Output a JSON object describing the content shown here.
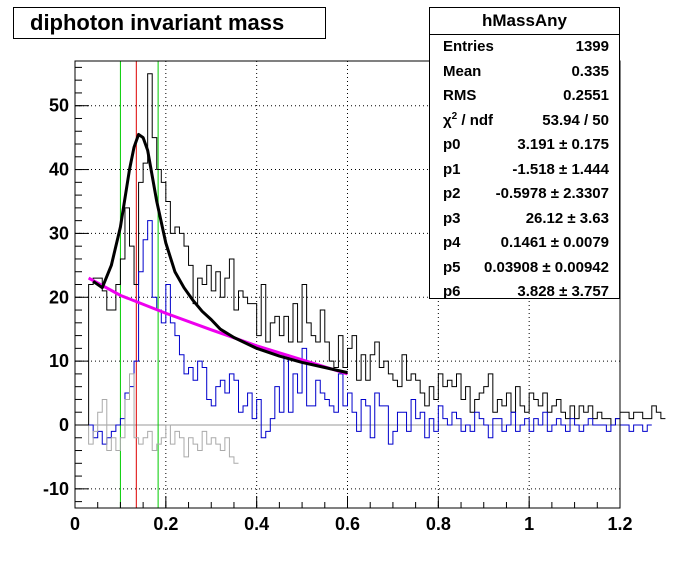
{
  "title": "diphoton invariant mass",
  "stats": {
    "name": "hMassAny",
    "rows": [
      {
        "label": "Entries",
        "value": "1399"
      },
      {
        "label": "Mean",
        "value": "0.335"
      },
      {
        "label": "RMS",
        "value": "0.2551"
      },
      {
        "label": "chi2 / ndf",
        "value": "53.94 / 50"
      },
      {
        "label": "p0",
        "value": "3.191 ± 0.175"
      },
      {
        "label": "p1",
        "value": "-1.518 ± 1.444"
      },
      {
        "label": "p2",
        "value": "-0.5978 ± 2.3307"
      },
      {
        "label": "p3",
        "value": "26.12 ± 3.63"
      },
      {
        "label": "p4",
        "value": "0.1461 ± 0.0079"
      },
      {
        "label": "p5",
        "value": "0.03908 ± 0.00942"
      },
      {
        "label": "p6",
        "value": "3.828 ± 3.757"
      }
    ]
  },
  "chart_data": {
    "type": "line",
    "title": "diphoton invariant mass",
    "xlabel": "",
    "ylabel": "",
    "xlim": [
      0,
      1.2
    ],
    "ylim": [
      -13,
      57
    ],
    "xticks": [
      0,
      0.2,
      0.4,
      0.6,
      0.8,
      1,
      1.2
    ],
    "xtick_labels": [
      "0",
      "0.2",
      "0.4",
      "0.6",
      "0.8",
      "1",
      "1.2"
    ],
    "yticks": [
      -10,
      0,
      10,
      20,
      30,
      40,
      50
    ],
    "ytick_labels": [
      "-10",
      "0",
      "10",
      "20",
      "30",
      "40",
      "50"
    ],
    "grid": true,
    "bin_width": 0.01,
    "colors": {
      "total": "#000000",
      "signal_band": "#0000cc",
      "sideband": "#aaaaaa",
      "fit": "#000000",
      "background_fit": "#ee00ee",
      "window_lines": "#00cc00",
      "peak_line": "#dd0000"
    },
    "series": [
      {
        "x_start": 0.03,
        "values": [
          22,
          23,
          23,
          21,
          18,
          18,
          22,
          26,
          34,
          28,
          22,
          38,
          41,
          55,
          45,
          40,
          38,
          35,
          30,
          31,
          30,
          28,
          25,
          19,
          23,
          22,
          25,
          21,
          24,
          20,
          23,
          26,
          18,
          21,
          20,
          19,
          19,
          14,
          22,
          13,
          16,
          17,
          14,
          17,
          13,
          19,
          13,
          22,
          16,
          14,
          13,
          18,
          13,
          10,
          9,
          14,
          9,
          12,
          14,
          7,
          11,
          7,
          11,
          13,
          9,
          10,
          8,
          7,
          6,
          11,
          7,
          8,
          7,
          5,
          3,
          6,
          4,
          8,
          6,
          7,
          6,
          8,
          4,
          6,
          2,
          4,
          5,
          6,
          8,
          2,
          4,
          3,
          5,
          2,
          6,
          3,
          2,
          5,
          4,
          3,
          5,
          2,
          3,
          4,
          2,
          1,
          3,
          1,
          3,
          2,
          3,
          1,
          2,
          1,
          1,
          0,
          1,
          2,
          2,
          1,
          2,
          2,
          1,
          1,
          3,
          2,
          1
        ]
      },
      {
        "x_start": 0.03,
        "values": [
          0,
          -2,
          -1,
          -3,
          -2,
          -1,
          0,
          1,
          5,
          6,
          10,
          24,
          29,
          32,
          20,
          18,
          16,
          22,
          16,
          14,
          11,
          8,
          9,
          7,
          10,
          9,
          4,
          3,
          6,
          7,
          5,
          8,
          7,
          2,
          3,
          5,
          1,
          4,
          -2,
          -1,
          1,
          6,
          2,
          11,
          2,
          8,
          5,
          12,
          3,
          3,
          7,
          5,
          4,
          3,
          2,
          8,
          3,
          5,
          2,
          -1,
          4,
          3,
          -2,
          5,
          3,
          3,
          -3,
          -1,
          2,
          2,
          -1,
          4,
          1,
          2,
          -2,
          1,
          -1,
          3,
          1,
          0,
          2,
          1,
          -1,
          0,
          -1,
          2,
          1,
          0,
          -2,
          1,
          1,
          -1,
          0,
          2,
          -1,
          0,
          1,
          -1,
          1,
          0,
          2,
          -1,
          0,
          1,
          0,
          -1,
          1,
          0,
          -1,
          0,
          1,
          0,
          0,
          0,
          -1,
          0,
          1,
          0,
          0,
          -1,
          0,
          0,
          -1,
          0
        ]
      },
      {
        "x_start": 0.03,
        "values": [
          -3,
          -1,
          2,
          4,
          -4,
          -2,
          -4,
          -2,
          4,
          8,
          -2,
          -3,
          -2,
          -1,
          -4,
          -3,
          -2,
          0,
          -3,
          -1,
          -2,
          -5,
          -2,
          -3,
          -4,
          -1,
          -3,
          -2,
          -3,
          -4,
          -2,
          -5,
          -6
        ]
      }
    ],
    "fit_x": [
      0.04,
      0.06,
      0.08,
      0.1,
      0.11,
      0.12,
      0.13,
      0.14,
      0.15,
      0.16,
      0.17,
      0.18,
      0.2,
      0.22,
      0.24,
      0.26,
      0.28,
      0.3,
      0.32,
      0.35,
      0.4,
      0.45,
      0.5,
      0.55,
      0.6
    ],
    "fit_y": [
      22.5,
      21.5,
      25,
      31,
      35.5,
      40,
      43.5,
      45.5,
      45,
      43,
      39,
      35,
      28.5,
      24,
      21.5,
      19.5,
      17.8,
      16.5,
      15,
      13.7,
      12,
      10.8,
      9.8,
      9,
      8.2
    ],
    "bkg_x": [
      0.03,
      0.1,
      0.2,
      0.3,
      0.4,
      0.5,
      0.6
    ],
    "bkg_y": [
      23,
      20.3,
      17.5,
      14.9,
      12.4,
      10.2,
      8
    ],
    "vlines": [
      {
        "x": 0.1,
        "color": "#00cc00"
      },
      {
        "x": 0.135,
        "color": "#dd0000"
      },
      {
        "x": 0.183,
        "color": "#00cc00"
      }
    ]
  }
}
